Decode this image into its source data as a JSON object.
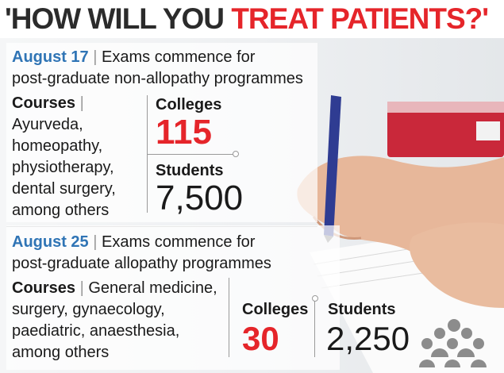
{
  "headline": {
    "part1": "'HOW WILL YOU ",
    "part2": "TREAT PATIENTS?'"
  },
  "section1": {
    "date": "August 17",
    "sep": "|",
    "desc_line1": "Exams commence for",
    "desc_line2": "post-graduate non-allopathy programmes",
    "courses_label": "Courses",
    "courses_sep": "|",
    "courses": [
      "Ayurveda,",
      "homeopathy,",
      "physiotherapy,",
      "dental surgery,",
      "among others"
    ],
    "colleges_label": "Colleges",
    "colleges_value": "115",
    "students_label": "Students",
    "students_value": "7,500"
  },
  "section2": {
    "date": "August 25",
    "sep": "|",
    "desc_line1": "Exams commence for",
    "desc_line2": "post-graduate allopathy programmes",
    "courses_label": "Courses",
    "courses_sep": "|",
    "courses_line1": "General medicine,",
    "courses": [
      "surgery, gynaecology,",
      "paediatric, anaesthesia,",
      "among others"
    ],
    "colleges_label": "Colleges",
    "colleges_value": "30",
    "students_label": "Students",
    "students_value": "2,250"
  },
  "colors": {
    "accent_red": "#e5252a",
    "accent_blue": "#2f74b5",
    "text": "#1a1a1a"
  },
  "icons": [
    "people-group-icon"
  ]
}
